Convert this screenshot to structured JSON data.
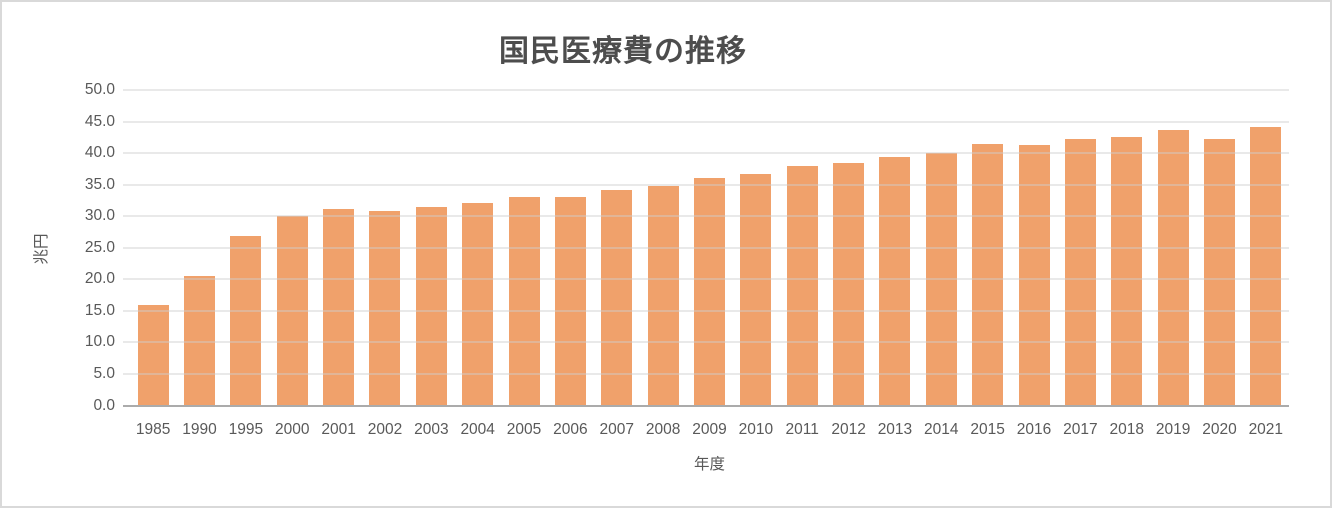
{
  "chart_data": {
    "type": "bar",
    "title": "国民医療費の推移",
    "xlabel": "年度",
    "ylabel": "兆円",
    "categories": [
      "1985",
      "1990",
      "1995",
      "2000",
      "2001",
      "2002",
      "2003",
      "2004",
      "2005",
      "2006",
      "2007",
      "2008",
      "2009",
      "2010",
      "2011",
      "2012",
      "2013",
      "2014",
      "2015",
      "2016",
      "2017",
      "2018",
      "2019",
      "2020",
      "2021"
    ],
    "values": [
      16.0,
      20.5,
      26.9,
      30.0,
      31.1,
      30.9,
      31.4,
      32.1,
      33.0,
      33.0,
      34.1,
      34.8,
      36.0,
      36.7,
      37.9,
      38.4,
      39.4,
      40.0,
      41.5,
      41.3,
      42.2,
      42.6,
      43.6,
      42.2,
      44.2
    ],
    "ylim": [
      0,
      50
    ],
    "ytick_step": 5,
    "y_tick_labels": [
      "0.0",
      "5.0",
      "10.0",
      "15.0",
      "20.0",
      "25.0",
      "30.0",
      "35.0",
      "40.0",
      "45.0",
      "50.0"
    ],
    "grid": true,
    "legend": "none",
    "colors": {
      "bar": "#F0A16B",
      "gridline_rgba": "rgba(206,206,206,0.45)",
      "axis_line": "#ABABAB",
      "tick_text": "#595959",
      "title_text": "#4D4D4D",
      "chart_border": "#D9D9D9",
      "background": "#FFFFFF"
    }
  }
}
